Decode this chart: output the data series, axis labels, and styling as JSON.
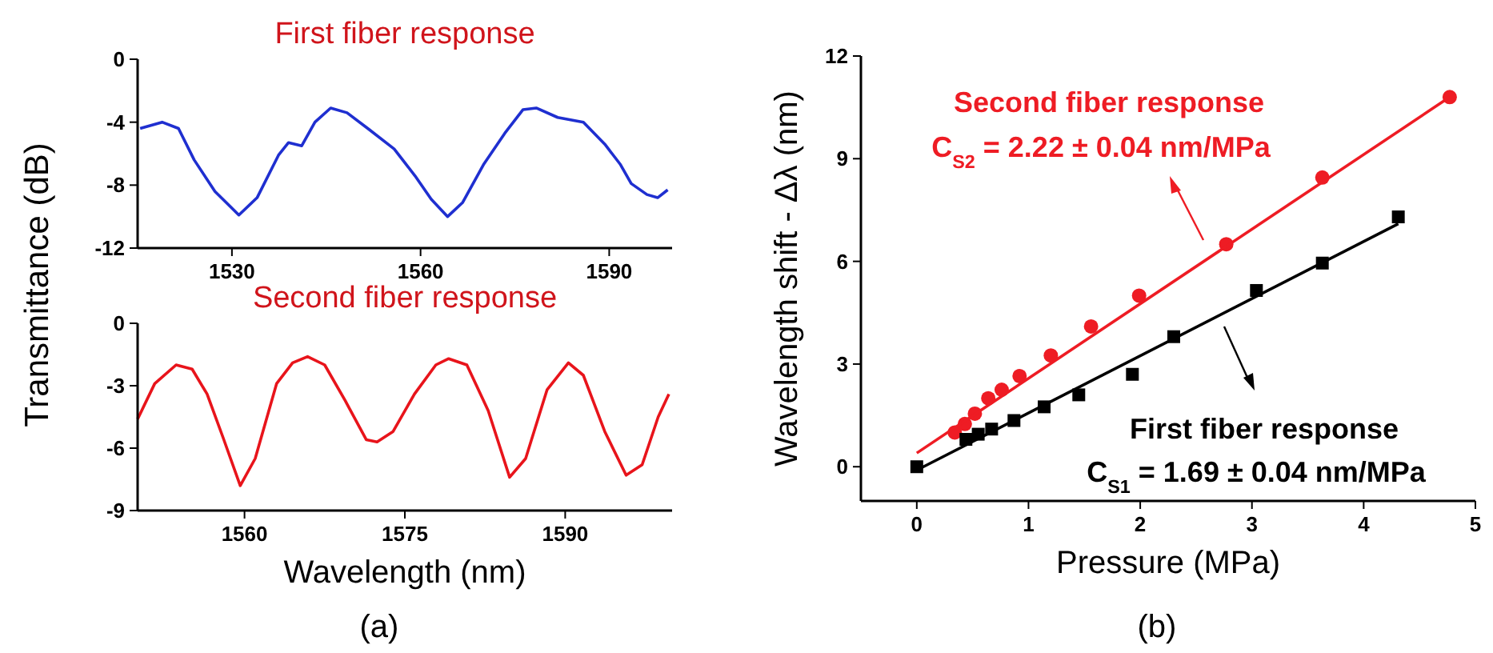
{
  "chart_data": [
    {
      "type": "line",
      "title": "First fiber response",
      "ylabel": "Transmittance (dB)",
      "xlim": [
        1515,
        1600
      ],
      "xticks": [
        1530,
        1560,
        1590
      ],
      "ylim": [
        -12,
        0
      ],
      "yticks": [
        -12,
        -8,
        -4,
        0
      ],
      "grid": false,
      "series": [
        {
          "color": "#1f2fd0",
          "marker": "none",
          "x": [
            1515.4,
            1518.9,
            1521.5,
            1524,
            1527.3,
            1531.1,
            1534,
            1537.4,
            1539,
            1541.1,
            1543.2,
            1545.7,
            1548.3,
            1551.6,
            1555.8,
            1559.1,
            1561.7,
            1564.3,
            1566.7,
            1570,
            1573.4,
            1576.3,
            1578.4,
            1581.8,
            1585.9,
            1589.3,
            1591.8,
            1593.5,
            1596,
            1597.7,
            1599.3
          ],
          "values": [
            -4.4,
            -4,
            -4.4,
            -6.4,
            -8.4,
            -9.9,
            -8.8,
            -6.1,
            -5.3,
            -5.5,
            -4,
            -3.1,
            -3.4,
            -4.4,
            -5.7,
            -7.4,
            -8.9,
            -10,
            -9.1,
            -6.7,
            -4.7,
            -3.2,
            -3.1,
            -3.7,
            -4,
            -5.4,
            -6.7,
            -7.9,
            -8.6,
            -8.8,
            -8.3
          ]
        }
      ]
    },
    {
      "type": "line",
      "title": "Second fiber response",
      "xlabel": "Wavelength (nm)",
      "xlim": [
        1550,
        1600
      ],
      "xticks": [
        1560,
        1575,
        1590
      ],
      "ylim": [
        -9,
        0
      ],
      "yticks": [
        -9,
        -6,
        -3,
        0
      ],
      "grid": false,
      "annotations": [
        "(a)"
      ],
      "series": [
        {
          "color": "#e8141b",
          "marker": "none",
          "x": [
            1550,
            1551.6,
            1553.6,
            1555.1,
            1556.5,
            1558,
            1559.6,
            1561,
            1563,
            1564.5,
            1565.9,
            1567.5,
            1569.4,
            1571.4,
            1572.4,
            1573.9,
            1575.9,
            1577.9,
            1579.1,
            1580.8,
            1582.8,
            1584.8,
            1586.3,
            1588.3,
            1590.3,
            1591.7,
            1593.7,
            1595.7,
            1597.2,
            1598.7,
            1599.7
          ],
          "values": [
            -4.6,
            -2.9,
            -2,
            -2.2,
            -3.4,
            -5.5,
            -7.8,
            -6.5,
            -2.9,
            -1.9,
            -1.6,
            -2,
            -3.7,
            -5.6,
            -5.7,
            -5.2,
            -3.4,
            -2,
            -1.7,
            -2,
            -4.2,
            -7.4,
            -6.5,
            -3.2,
            -1.9,
            -2.5,
            -5.2,
            -7.3,
            -6.8,
            -4.5,
            -3.4
          ]
        }
      ]
    },
    {
      "type": "scatter",
      "xlabel": "Pressure (MPa)",
      "ylabel": "Wavelength shift - Δλ (nm)",
      "xlim": [
        -0.5,
        5
      ],
      "xticks": [
        0,
        1,
        2,
        3,
        4,
        5
      ],
      "ylim": [
        -1,
        12
      ],
      "yticks": [
        0,
        3,
        6,
        9,
        12
      ],
      "grid": false,
      "annotations": [
        "Second fiber response",
        "C$_{S2}$ = 2.22 ± 0.04 nm/MPa",
        "First fiber response",
        "C$_{S1}$ = 1.69 ± 0.04 nm/MPa",
        "(b)"
      ],
      "series": [
        {
          "color": "#ee1c24",
          "marker": "circle",
          "x": [
            0.34,
            0.43,
            0.52,
            0.64,
            0.76,
            0.92,
            1.2,
            1.56,
            1.99,
            2.77,
            3.63,
            4.77
          ],
          "values": [
            1.0,
            1.25,
            1.55,
            2.0,
            2.25,
            2.65,
            3.25,
            4.1,
            5.0,
            6.5,
            8.45,
            10.8
          ]
        },
        {
          "type": "line",
          "color": "#ee1c24",
          "marker": "none",
          "x": [
            0,
            4.77
          ],
          "values": [
            0.4,
            10.8
          ]
        },
        {
          "color": "#000000",
          "marker": "square",
          "x": [
            0,
            0.44,
            0.55,
            0.67,
            0.87,
            1.14,
            1.45,
            1.93,
            2.3,
            3.04,
            3.63,
            4.31
          ],
          "values": [
            0,
            0.8,
            0.95,
            1.1,
            1.35,
            1.75,
            2.1,
            2.7,
            3.8,
            5.15,
            5.95,
            7.3
          ]
        },
        {
          "type": "line",
          "color": "#000000",
          "marker": "none",
          "x": [
            0,
            4.31
          ],
          "values": [
            -0.1,
            7.1
          ]
        }
      ]
    }
  ]
}
